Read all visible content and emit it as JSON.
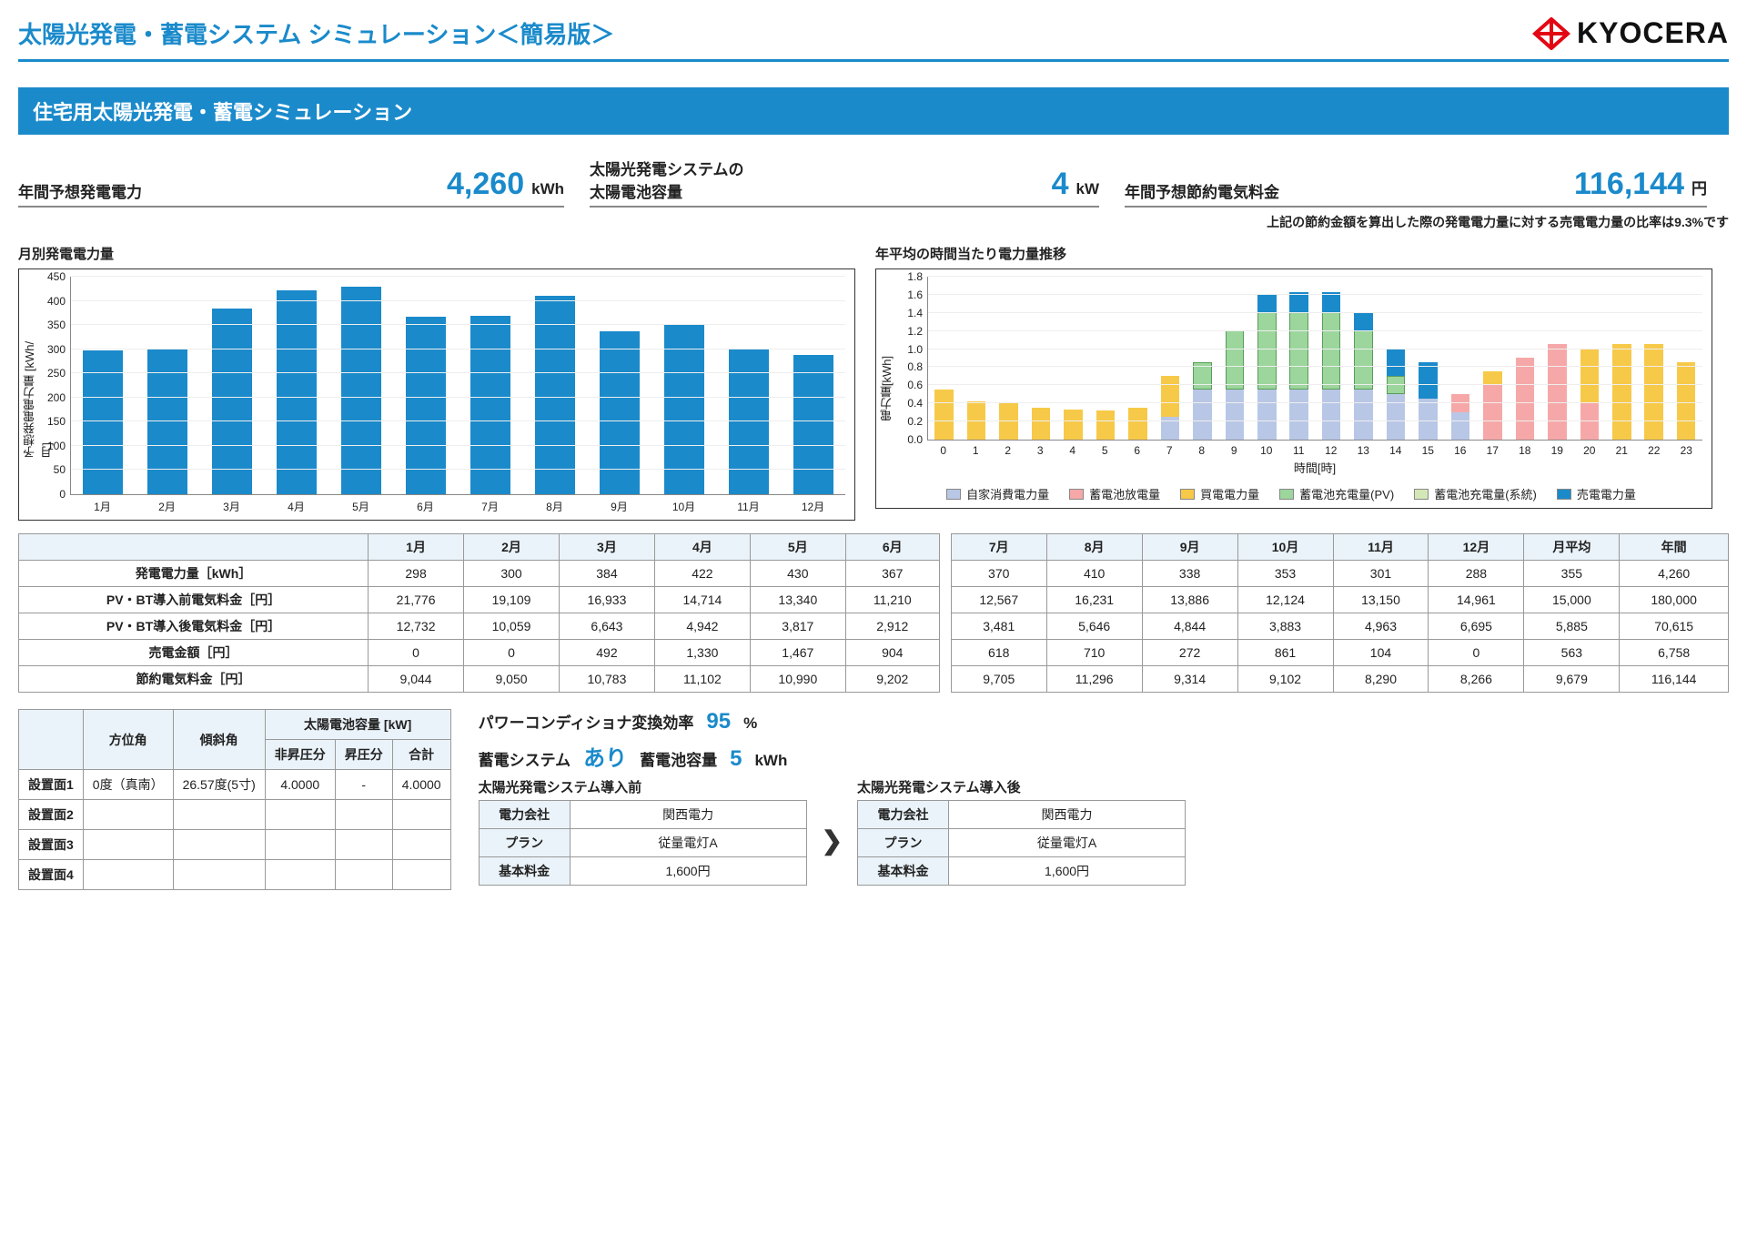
{
  "page": {
    "title": "太陽光発電・蓄電システム シミュレーション＜簡易版＞",
    "logo_text": "KYOCERA",
    "logo_color": "#e30613",
    "section_title": "住宅用太陽光発電・蓄電シミュレーション"
  },
  "kpi": {
    "k1_label": "年間予想発電電力",
    "k1_value": "4,260",
    "k1_unit": "kWh",
    "k2_label": "太陽光発電システムの\n太陽電池容量",
    "k2_value": "4",
    "k2_unit": "kW",
    "k3_label": "年間予想節約電気料金",
    "k3_value": "116,144",
    "k3_unit": "円",
    "note": "上記の節約金額を算出した際の発電電力量に対する売電電力量の比率は9.3%です"
  },
  "monthly_chart": {
    "title": "月別発電電力量",
    "y_label": "予想発電電力量 [kWh/月]",
    "ymax": 450,
    "ytick_step": 50,
    "bar_color": "#1a8acb",
    "categories": [
      "1月",
      "2月",
      "3月",
      "4月",
      "5月",
      "6月",
      "7月",
      "8月",
      "9月",
      "10月",
      "11月",
      "12月"
    ],
    "values": [
      298,
      300,
      384,
      422,
      430,
      367,
      370,
      410,
      338,
      353,
      301,
      288
    ]
  },
  "hourly_chart": {
    "title": "年平均の時間当たり電力量推移",
    "y_label": "電力量[kWh]",
    "x_label": "時間[時]",
    "ymax": 1.8,
    "ytick_step": 0.2,
    "hours": [
      "0",
      "1",
      "2",
      "3",
      "4",
      "5",
      "6",
      "7",
      "8",
      "9",
      "10",
      "11",
      "12",
      "13",
      "14",
      "15",
      "16",
      "17",
      "18",
      "19",
      "20",
      "21",
      "22",
      "23"
    ],
    "colors": {
      "self": "#b9c7e6",
      "discharge": "#f6a8a8",
      "buy": "#f7c948",
      "charge_pv": "#9cd69c",
      "charge_grid": "#d4e8b5",
      "sell": "#1a8acb"
    },
    "legend": [
      {
        "key": "self",
        "label": "自家消費電力量"
      },
      {
        "key": "discharge",
        "label": "蓄電池放電量"
      },
      {
        "key": "buy",
        "label": "買電電力量"
      },
      {
        "key": "charge_pv",
        "label": "蓄電池充電量(PV)"
      },
      {
        "key": "charge_grid",
        "label": "蓄電池充電量(系統)"
      },
      {
        "key": "sell",
        "label": "売電電力量"
      }
    ],
    "stacks": [
      {
        "buy": 0.55
      },
      {
        "buy": 0.42
      },
      {
        "buy": 0.4
      },
      {
        "buy": 0.35
      },
      {
        "buy": 0.33
      },
      {
        "buy": 0.32
      },
      {
        "buy": 0.35
      },
      {
        "buy": 0.45,
        "self": 0.25
      },
      {
        "self": 0.55,
        "charge_pv": 0.3
      },
      {
        "self": 0.55,
        "charge_pv": 0.65
      },
      {
        "self": 0.55,
        "charge_pv": 0.85,
        "sell": 0.2
      },
      {
        "self": 0.55,
        "charge_pv": 0.85,
        "sell": 0.22
      },
      {
        "self": 0.55,
        "charge_pv": 0.85,
        "sell": 0.22
      },
      {
        "self": 0.55,
        "charge_pv": 0.65,
        "sell": 0.2
      },
      {
        "self": 0.5,
        "charge_pv": 0.2,
        "sell": 0.3
      },
      {
        "self": 0.45,
        "sell": 0.4
      },
      {
        "self": 0.3,
        "discharge": 0.2
      },
      {
        "discharge": 0.6,
        "buy": 0.15
      },
      {
        "discharge": 0.9
      },
      {
        "discharge": 1.05
      },
      {
        "discharge": 0.4,
        "buy": 0.6
      },
      {
        "buy": 1.05
      },
      {
        "buy": 1.05
      },
      {
        "buy": 0.85
      }
    ]
  },
  "data_table": {
    "col_headers": [
      "1月",
      "2月",
      "3月",
      "4月",
      "5月",
      "6月",
      "7月",
      "8月",
      "9月",
      "10月",
      "11月",
      "12月",
      "月平均",
      "年間"
    ],
    "rows": [
      {
        "label": "発電電力量［kWh］",
        "cells": [
          "298",
          "300",
          "384",
          "422",
          "430",
          "367",
          "370",
          "410",
          "338",
          "353",
          "301",
          "288",
          "355",
          "4,260"
        ]
      },
      {
        "label": "PV・BT導入前電気料金［円］",
        "cells": [
          "21,776",
          "19,109",
          "16,933",
          "14,714",
          "13,340",
          "11,210",
          "12,567",
          "16,231",
          "13,886",
          "12,124",
          "13,150",
          "14,961",
          "15,000",
          "180,000"
        ]
      },
      {
        "label": "PV・BT導入後電気料金［円］",
        "cells": [
          "12,732",
          "10,059",
          "6,643",
          "4,942",
          "3,817",
          "2,912",
          "3,481",
          "5,646",
          "4,844",
          "3,883",
          "4,963",
          "6,695",
          "5,885",
          "70,615"
        ]
      },
      {
        "label": "売電金額［円］",
        "cells": [
          "0",
          "0",
          "492",
          "1,330",
          "1,467",
          "904",
          "618",
          "710",
          "272",
          "861",
          "104",
          "0",
          "563",
          "6,758"
        ]
      },
      {
        "label": "節約電気料金［円］",
        "cells": [
          "9,044",
          "9,050",
          "10,783",
          "11,102",
          "10,990",
          "9,202",
          "9,705",
          "11,296",
          "9,314",
          "9,102",
          "8,290",
          "8,266",
          "9,679",
          "116,144"
        ]
      }
    ]
  },
  "install_table": {
    "h_azimuth": "方位角",
    "h_tilt": "傾斜角",
    "h_capacity": "太陽電池容量 [kW]",
    "h_nonboost": "非昇圧分",
    "h_boost": "昇圧分",
    "h_total": "合計",
    "rows": [
      {
        "label": "設置面1",
        "azimuth": "0度（真南）",
        "tilt": "26.57度(5寸)",
        "nonboost": "4.0000",
        "boost": "-",
        "total": "4.0000"
      },
      {
        "label": "設置面2",
        "azimuth": "",
        "tilt": "",
        "nonboost": "",
        "boost": "",
        "total": ""
      },
      {
        "label": "設置面3",
        "azimuth": "",
        "tilt": "",
        "nonboost": "",
        "boost": "",
        "total": ""
      },
      {
        "label": "設置面4",
        "azimuth": "",
        "tilt": "",
        "nonboost": "",
        "boost": "",
        "total": ""
      }
    ]
  },
  "meta": {
    "eff_label": "パワーコンディショナ変換効率",
    "eff_value": "95",
    "eff_unit": "%",
    "storage_label": "蓄電システム",
    "storage_value": "あり",
    "cap_label": "蓄電池容量",
    "cap_value": "5",
    "cap_unit": "kWh"
  },
  "sys": {
    "before_title": "太陽光発電システム導入前",
    "after_title": "太陽光発電システム導入後",
    "h_company": "電力会社",
    "h_plan": "プラン",
    "h_base": "基本料金",
    "before": {
      "company": "関西電力",
      "plan": "従量電灯A",
      "base": "1,600円"
    },
    "after": {
      "company": "関西電力",
      "plan": "従量電灯A",
      "base": "1,600円"
    }
  }
}
